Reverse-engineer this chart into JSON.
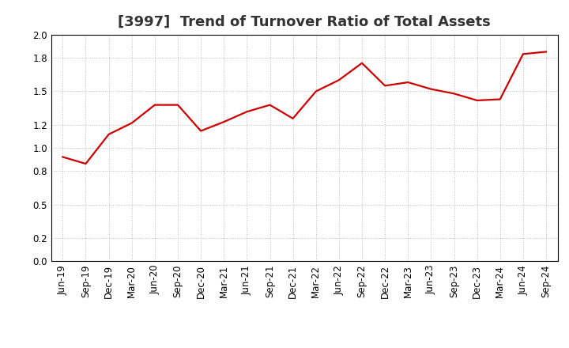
{
  "title": "[3997]  Trend of Turnover Ratio of Total Assets",
  "x_labels": [
    "Jun-19",
    "Sep-19",
    "Dec-19",
    "Mar-20",
    "Jun-20",
    "Sep-20",
    "Dec-20",
    "Mar-21",
    "Jun-21",
    "Sep-21",
    "Dec-21",
    "Mar-22",
    "Jun-22",
    "Sep-22",
    "Dec-22",
    "Mar-23",
    "Jun-23",
    "Sep-23",
    "Dec-23",
    "Mar-24",
    "Jun-24",
    "Sep-24"
  ],
  "y_values": [
    0.92,
    0.86,
    1.12,
    1.22,
    1.38,
    1.38,
    1.15,
    1.23,
    1.32,
    1.38,
    1.26,
    1.5,
    1.6,
    1.75,
    1.55,
    1.58,
    1.52,
    1.48,
    1.42,
    1.43,
    1.83,
    1.85
  ],
  "line_color": "#cc0000",
  "line_width": 1.6,
  "ylim": [
    0.0,
    2.0
  ],
  "yticks": [
    0.0,
    0.2,
    0.5,
    0.8,
    1.0,
    1.2,
    1.5,
    1.8,
    2.0
  ],
  "grid_color": "#aaaaaa",
  "bg_color": "#ffffff",
  "title_fontsize": 13,
  "tick_fontsize": 8.5,
  "title_color": "#333333",
  "title_fontweight": "bold"
}
